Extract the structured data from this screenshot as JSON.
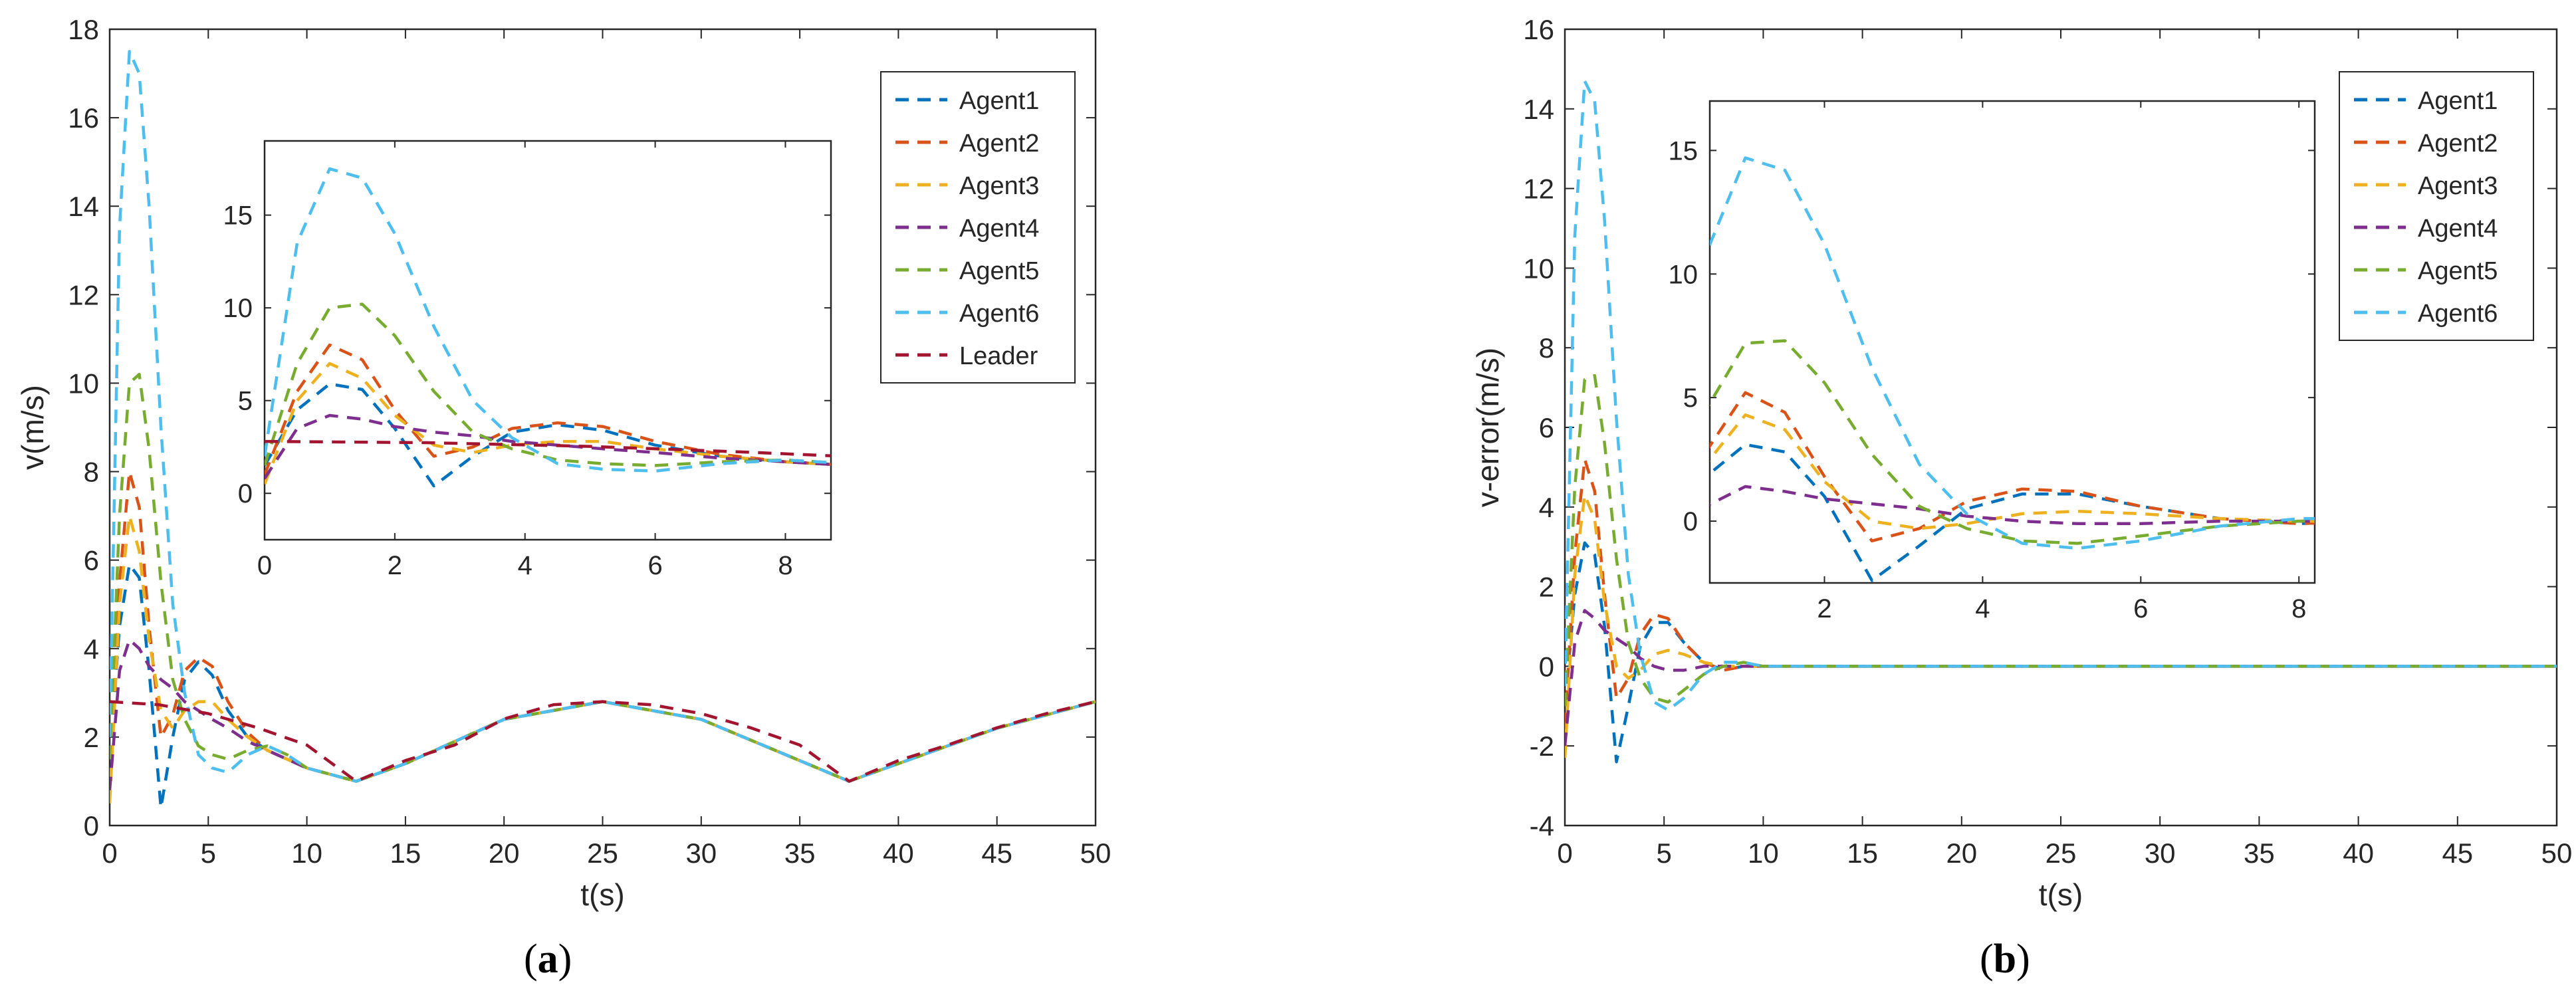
{
  "captions": {
    "a": "a",
    "b": "b"
  },
  "chart_data": [
    {
      "id": "a",
      "type": "line",
      "xlabel": "t(s)",
      "ylabel": "v(m/s)",
      "xlim": [
        0,
        50
      ],
      "ylim": [
        0,
        18
      ],
      "xticks": [
        0,
        5,
        10,
        15,
        20,
        25,
        30,
        35,
        40,
        45,
        50
      ],
      "yticks": [
        0,
        2,
        4,
        6,
        8,
        10,
        12,
        14,
        16,
        18
      ],
      "legend_position": "top-right",
      "line_style": "dashed",
      "series": [
        {
          "name": "Agent1",
          "color": "#0072BD",
          "x": [
            0,
            0.5,
            1,
            1.5,
            2,
            2.6,
            3.2,
            3.8,
            4.5,
            5.2,
            6,
            7,
            8,
            9,
            10,
            12.5,
            15,
            20,
            25,
            30,
            37.5,
            45,
            50
          ],
          "y": [
            1.5,
            4.5,
            5.9,
            5.6,
            3.5,
            0.4,
            2.0,
            3.3,
            3.7,
            3.4,
            2.6,
            2.0,
            1.7,
            1.5,
            1.3,
            1.0,
            1.4,
            2.4,
            2.8,
            2.4,
            1.0,
            2.2,
            2.8
          ]
        },
        {
          "name": "Agent2",
          "color": "#D95319",
          "x": [
            0,
            0.5,
            1,
            1.5,
            2,
            2.6,
            3.2,
            3.8,
            4.5,
            5.2,
            6,
            7,
            8,
            9,
            10,
            12.5,
            15,
            20,
            25,
            30,
            37.5,
            45,
            50
          ],
          "y": [
            1.0,
            5.5,
            8.0,
            7.2,
            4.5,
            2.0,
            2.5,
            3.5,
            3.8,
            3.6,
            2.8,
            2.1,
            1.7,
            1.5,
            1.3,
            1.0,
            1.4,
            2.4,
            2.8,
            2.4,
            1.0,
            2.2,
            2.8
          ]
        },
        {
          "name": "Agent3",
          "color": "#EDB120",
          "x": [
            0,
            0.5,
            1,
            1.5,
            2,
            2.6,
            3.2,
            3.8,
            4.5,
            5.2,
            6,
            7,
            8,
            9,
            10,
            12.5,
            15,
            20,
            25,
            30,
            37.5,
            45,
            50
          ],
          "y": [
            0.5,
            5.0,
            7.0,
            6.2,
            4.2,
            2.6,
            2.2,
            2.6,
            2.8,
            2.8,
            2.4,
            2.0,
            1.7,
            1.5,
            1.3,
            1.0,
            1.4,
            2.4,
            2.8,
            2.4,
            1.0,
            2.2,
            2.8
          ]
        },
        {
          "name": "Agent4",
          "color": "#7E2F8E",
          "x": [
            0,
            0.5,
            1,
            1.5,
            2,
            2.6,
            3.2,
            3.8,
            4.5,
            5.2,
            6,
            7,
            8,
            9,
            10,
            12.5,
            15,
            20,
            25,
            30,
            37.5,
            45,
            50
          ],
          "y": [
            0.8,
            3.5,
            4.2,
            4.0,
            3.6,
            3.3,
            3.1,
            2.8,
            2.6,
            2.4,
            2.2,
            1.9,
            1.7,
            1.5,
            1.3,
            1.0,
            1.4,
            2.4,
            2.8,
            2.4,
            1.0,
            2.2,
            2.8
          ]
        },
        {
          "name": "Agent5",
          "color": "#77AC30",
          "x": [
            0,
            0.5,
            1,
            1.5,
            2,
            2.6,
            3.2,
            3.8,
            4.5,
            5.2,
            6,
            7,
            8,
            9,
            10,
            12.5,
            15,
            20,
            25,
            30,
            37.5,
            45,
            50
          ],
          "y": [
            1.5,
            7.0,
            10.0,
            10.2,
            8.5,
            5.5,
            3.3,
            2.4,
            1.8,
            1.6,
            1.5,
            1.7,
            1.8,
            1.6,
            1.3,
            1.0,
            1.4,
            2.4,
            2.8,
            2.4,
            1.0,
            2.2,
            2.8
          ]
        },
        {
          "name": "Agent6",
          "color": "#4DBEEE",
          "x": [
            0,
            0.5,
            1,
            1.5,
            2,
            2.6,
            3.2,
            3.8,
            4.5,
            5.2,
            6,
            7,
            8,
            9,
            10,
            12.5,
            15,
            20,
            25,
            30,
            37.5,
            45,
            50
          ],
          "y": [
            2.0,
            13.5,
            17.5,
            17.0,
            14.0,
            9.0,
            5.0,
            3.0,
            1.6,
            1.3,
            1.2,
            1.6,
            1.8,
            1.6,
            1.3,
            1.0,
            1.4,
            2.4,
            2.8,
            2.4,
            1.0,
            2.2,
            2.8
          ]
        },
        {
          "name": "Leader",
          "color": "#A2142F",
          "x": [
            0,
            2.5,
            5,
            7.5,
            10,
            12.5,
            15,
            17.5,
            20,
            22.5,
            25,
            27.5,
            30,
            32.5,
            35,
            37.5,
            40,
            42.5,
            45,
            47.5,
            50
          ],
          "y": [
            2.8,
            2.73,
            2.53,
            2.21,
            1.82,
            1.0,
            1.47,
            1.82,
            2.41,
            2.73,
            2.8,
            2.73,
            2.53,
            2.21,
            1.82,
            1.0,
            1.47,
            1.82,
            2.21,
            2.53,
            2.8
          ]
        }
      ],
      "inset": {
        "xlim": [
          0,
          8.7
        ],
        "ylim": [
          -2.5,
          19
        ],
        "xticks": [
          0,
          2,
          4,
          6,
          8
        ],
        "yticks": [
          0,
          5,
          10,
          15
        ]
      }
    },
    {
      "id": "b",
      "type": "line",
      "xlabel": "t(s)",
      "ylabel": "v-error(m/s)",
      "xlim": [
        0,
        50
      ],
      "ylim": [
        -4,
        16
      ],
      "xticks": [
        0,
        5,
        10,
        15,
        20,
        25,
        30,
        35,
        40,
        45,
        50
      ],
      "yticks": [
        -4,
        -2,
        0,
        2,
        4,
        6,
        8,
        10,
        12,
        14,
        16
      ],
      "legend_position": "top-right",
      "line_style": "dashed",
      "series": [
        {
          "name": "Agent1",
          "color": "#0072BD",
          "x": [
            0,
            0.5,
            1,
            1.5,
            2,
            2.6,
            3.2,
            3.8,
            4.5,
            5.2,
            6,
            7,
            8,
            9,
            10,
            12,
            15,
            20,
            30,
            40,
            50
          ],
          "y": [
            -1.0,
            1.8,
            3.1,
            2.8,
            1.0,
            -2.4,
            -1.0,
            0.5,
            1.1,
            1.1,
            0.6,
            0.1,
            -0.1,
            0.0,
            0.0,
            0.0,
            0.0,
            0.0,
            0.0,
            0.0,
            0.0
          ]
        },
        {
          "name": "Agent2",
          "color": "#D95319",
          "x": [
            0,
            0.5,
            1,
            1.5,
            2,
            2.6,
            3.2,
            3.8,
            4.5,
            5.2,
            6,
            7,
            8,
            9,
            10,
            12,
            15,
            20,
            30,
            40,
            50
          ],
          "y": [
            -1.5,
            2.8,
            5.2,
            4.4,
            1.8,
            -0.8,
            -0.3,
            0.8,
            1.3,
            1.2,
            0.6,
            0.1,
            -0.1,
            0.0,
            0.0,
            0.0,
            0.0,
            0.0,
            0.0,
            0.0,
            0.0
          ]
        },
        {
          "name": "Agent3",
          "color": "#EDB120",
          "x": [
            0,
            0.5,
            1,
            1.5,
            2,
            2.6,
            3.2,
            3.8,
            4.5,
            5.2,
            6,
            7,
            8,
            9,
            10,
            12,
            15,
            20,
            30,
            40,
            50
          ],
          "y": [
            -2.3,
            2.3,
            4.3,
            3.7,
            1.6,
            0.0,
            -0.3,
            -0.1,
            0.3,
            0.4,
            0.3,
            0.1,
            0.0,
            0.0,
            0.0,
            0.0,
            0.0,
            0.0,
            0.0,
            0.0,
            0.0
          ]
        },
        {
          "name": "Agent4",
          "color": "#7E2F8E",
          "x": [
            0,
            0.5,
            1,
            1.5,
            2,
            2.6,
            3.2,
            3.8,
            4.5,
            5.2,
            6,
            7,
            8,
            9,
            10,
            12,
            15,
            20,
            30,
            40,
            50
          ],
          "y": [
            -2.0,
            0.6,
            1.4,
            1.2,
            0.9,
            0.7,
            0.5,
            0.2,
            0.0,
            -0.1,
            -0.1,
            0.0,
            0.0,
            0.0,
            0.0,
            0.0,
            0.0,
            0.0,
            0.0,
            0.0,
            0.0
          ]
        },
        {
          "name": "Agent5",
          "color": "#77AC30",
          "x": [
            0,
            0.5,
            1,
            1.5,
            2,
            2.6,
            3.2,
            3.8,
            4.5,
            5.2,
            6,
            7,
            8,
            9,
            10,
            12,
            15,
            20,
            30,
            40,
            50
          ],
          "y": [
            -1.0,
            4.5,
            7.2,
            7.3,
            5.6,
            2.7,
            0.6,
            -0.3,
            -0.8,
            -0.9,
            -0.6,
            -0.2,
            0.0,
            0.1,
            0.0,
            0.0,
            0.0,
            0.0,
            0.0,
            0.0,
            0.0
          ]
        },
        {
          "name": "Agent6",
          "color": "#4DBEEE",
          "x": [
            0,
            0.5,
            1,
            1.5,
            2,
            2.6,
            3.2,
            3.8,
            4.5,
            5.2,
            6,
            7,
            8,
            9,
            10,
            12,
            15,
            20,
            30,
            40,
            50
          ],
          "y": [
            -0.5,
            10.8,
            14.7,
            14.2,
            11.2,
            6.2,
            2.3,
            0.3,
            -0.9,
            -1.1,
            -0.8,
            -0.2,
            0.1,
            0.1,
            0.0,
            0.0,
            0.0,
            0.0,
            0.0,
            0.0,
            0.0
          ]
        }
      ],
      "inset": {
        "xlim": [
          0.55,
          8.2
        ],
        "ylim": [
          -2.5,
          17
        ],
        "xticks": [
          2,
          4,
          6,
          8
        ],
        "yticks": [
          0,
          5,
          10,
          15
        ]
      }
    }
  ]
}
